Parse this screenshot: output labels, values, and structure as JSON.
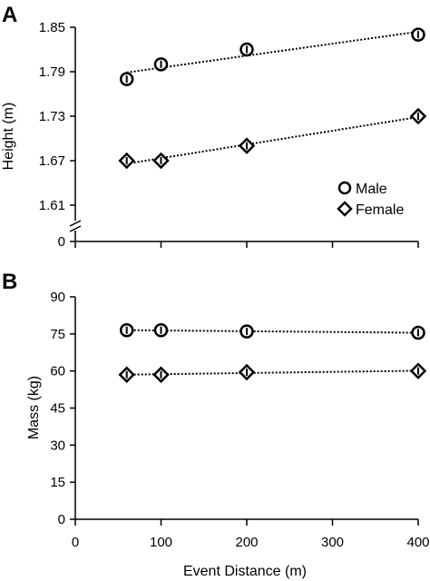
{
  "chart_data": [
    {
      "panel": "A",
      "type": "scatter",
      "ylabel": "Height (m)",
      "xlabel": "",
      "xlim": [
        0,
        400
      ],
      "ylim": [
        1.55,
        1.85
      ],
      "y_break": true,
      "y_break_bottom_tick": 0,
      "ytick_labels": [
        "0",
        "1.61",
        "1.67",
        "1.73",
        "1.79",
        "1.85"
      ],
      "ytick_values": [
        null,
        1.61,
        1.67,
        1.73,
        1.79,
        1.85
      ],
      "xtick_values": [
        0,
        100,
        200,
        300,
        400
      ],
      "trendlines": true,
      "legend_position": "right",
      "series": [
        {
          "name": "Male",
          "marker": "circle",
          "x": [
            60,
            100,
            200,
            400
          ],
          "y": [
            1.78,
            1.8,
            1.82,
            1.84
          ]
        },
        {
          "name": "Female",
          "marker": "diamond",
          "x": [
            60,
            100,
            200,
            400
          ],
          "y": [
            1.67,
            1.67,
            1.69,
            1.73
          ]
        }
      ]
    },
    {
      "panel": "B",
      "type": "scatter",
      "ylabel": "Mass (kg)",
      "xlabel": "Event Distance (m)",
      "xlim": [
        0,
        400
      ],
      "ylim": [
        0,
        90
      ],
      "ytick_labels": [
        "0",
        "15",
        "30",
        "45",
        "60",
        "75",
        "90"
      ],
      "ytick_values": [
        0,
        15,
        30,
        45,
        60,
        75,
        90
      ],
      "xtick_labels": [
        "0",
        "100",
        "200",
        "300",
        "400"
      ],
      "xtick_values": [
        0,
        100,
        200,
        300,
        400
      ],
      "trendlines": true,
      "series": [
        {
          "name": "Male",
          "marker": "circle",
          "x": [
            60,
            100,
            200,
            400
          ],
          "y": [
            76.5,
            76.5,
            76.0,
            75.5
          ]
        },
        {
          "name": "Female",
          "marker": "diamond",
          "x": [
            60,
            100,
            200,
            400
          ],
          "y": [
            58.5,
            58.5,
            59.5,
            60.0
          ]
        }
      ]
    }
  ]
}
